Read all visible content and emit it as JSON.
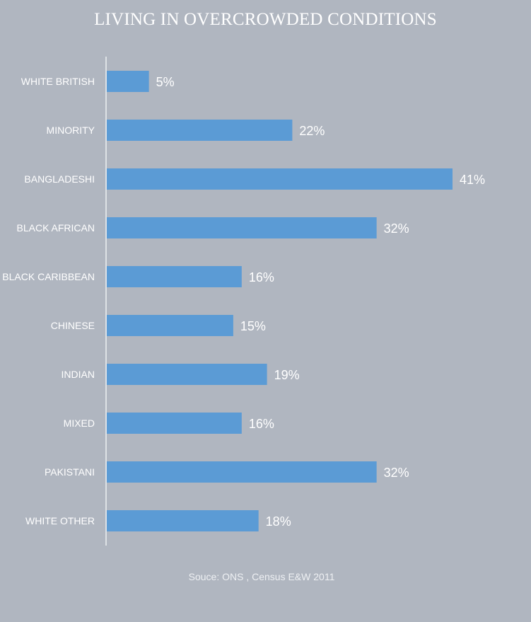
{
  "chart_data": {
    "type": "bar",
    "orientation": "horizontal",
    "title": "LIVING IN OVERCROWDED CONDITIONS",
    "categories": [
      "WHITE BRITISH",
      "MINORITY",
      "BANGLADESHI",
      "BLACK AFRICAN",
      "BLACK CARIBBEAN",
      "CHINESE",
      "INDIAN",
      "MIXED",
      "PAKISTANI",
      "WHITE OTHER"
    ],
    "values": [
      5,
      22,
      41,
      32,
      16,
      15,
      19,
      16,
      32,
      18
    ],
    "data_labels": [
      "5%",
      "22%",
      "41%",
      "32%",
      "16%",
      "15%",
      "19%",
      "16%",
      "32%",
      "18%"
    ],
    "unit": "%",
    "xlim": [
      0,
      41
    ],
    "grid": false,
    "legend": "none",
    "bar_color": "#5b9bd5",
    "background_color": "#b0b6c0"
  },
  "source": "Souce: ONS , Census  E&W 2011"
}
